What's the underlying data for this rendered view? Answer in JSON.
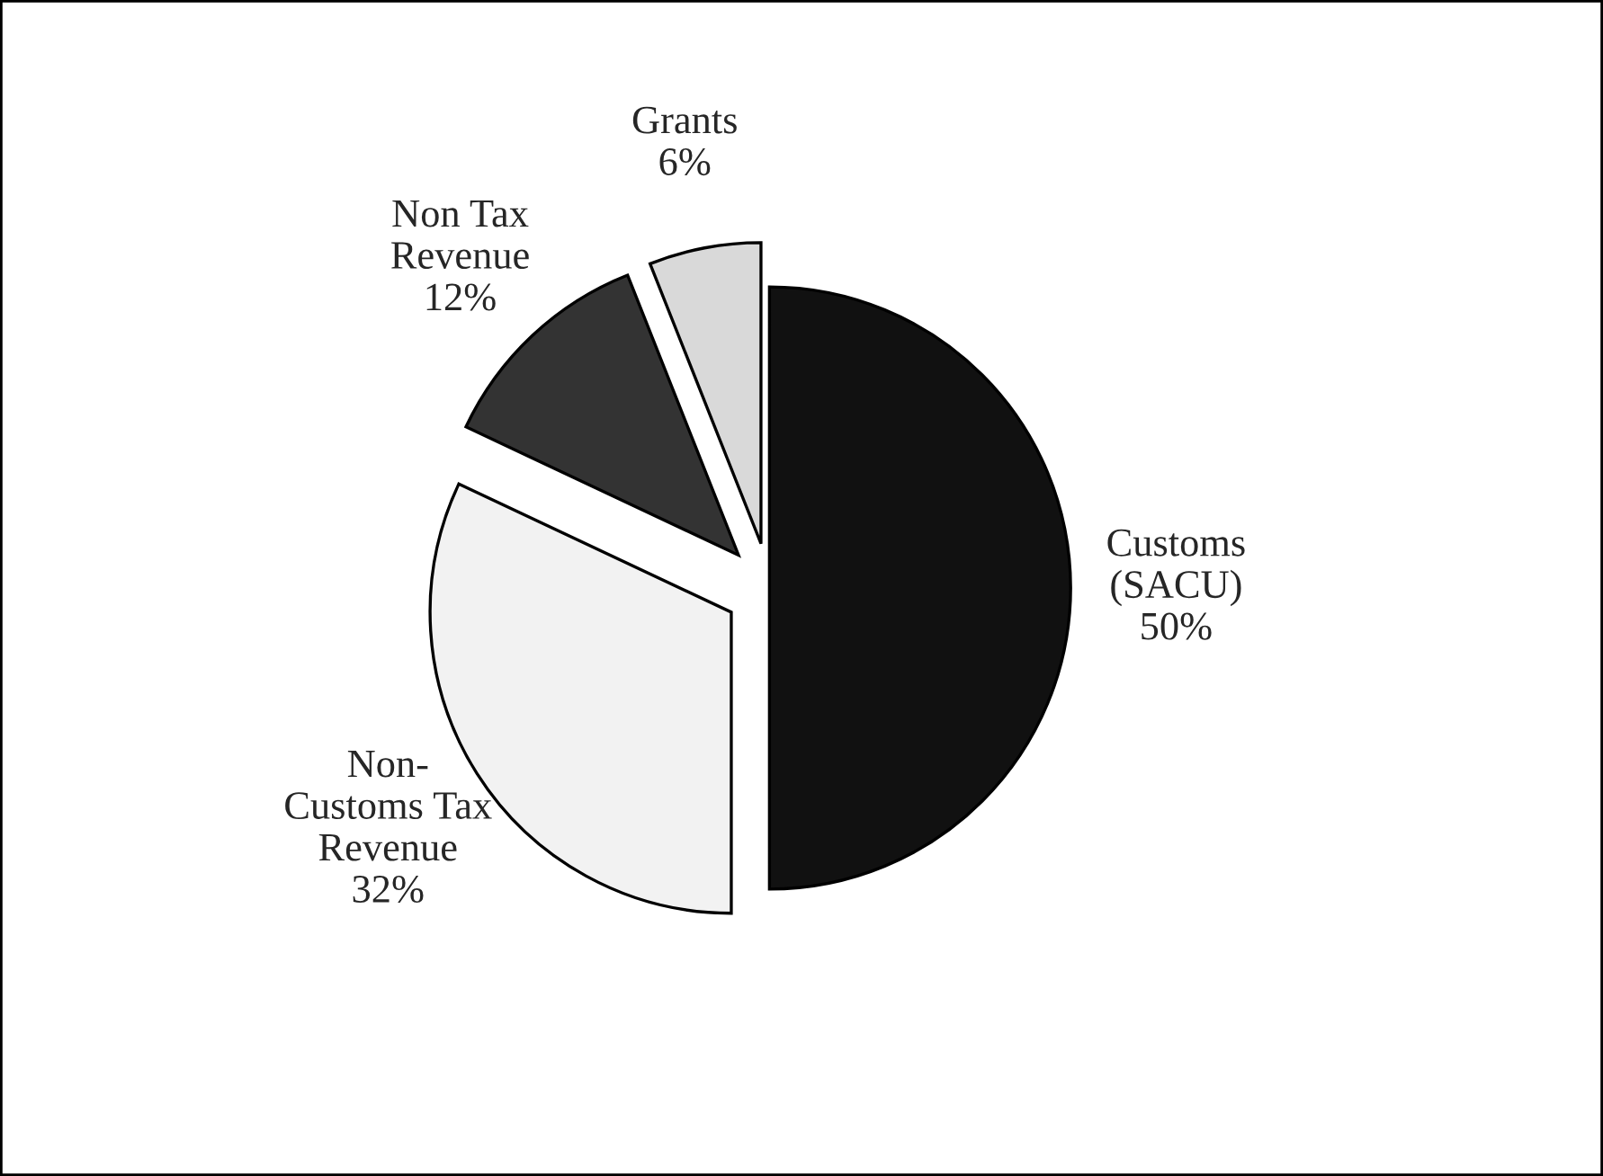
{
  "chart_data": {
    "type": "pie",
    "categories": [
      "Customs\n(SACU)",
      "Non-\nCustoms Tax\nRevenue",
      "Non Tax\nRevenue",
      "Grants"
    ],
    "values": [
      50,
      32,
      12,
      6
    ],
    "value_labels": [
      "50%",
      "32%",
      "12%",
      "6%"
    ],
    "colors": [
      "#111111",
      "#f2f2f2",
      "#333333",
      "#d9d9d9"
    ]
  }
}
